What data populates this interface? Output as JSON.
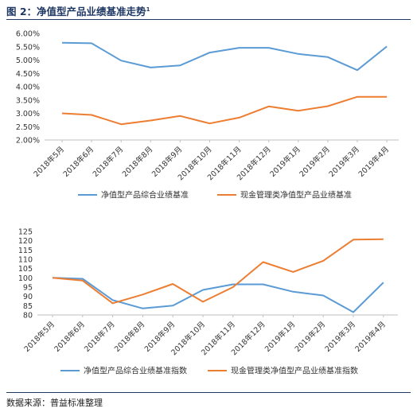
{
  "figure": {
    "title": "图 2：净值型产品业绩基准走势",
    "title_sup": "1",
    "source": "数据来源：普益标准整理"
  },
  "colors": {
    "series1": "#5b9bd5",
    "series2": "#ed7d31",
    "axis": "#bfbfbf",
    "title": "#1f3864"
  },
  "chart_data": [
    {
      "type": "line",
      "title": "",
      "xlabel": "",
      "ylabel": "",
      "categories": [
        "2018年5月",
        "2018年6月",
        "2018年7月",
        "2018年8月",
        "2018年9月",
        "2018年10月",
        "2018年11月",
        "2018年12月",
        "2019年1月",
        "2019年2月",
        "2019年3月",
        "2019年4月"
      ],
      "ylim": [
        0.02,
        0.06
      ],
      "yticks": [
        "2.00%",
        "2.50%",
        "3.00%",
        "3.50%",
        "4.00%",
        "4.50%",
        "5.00%",
        "5.50%",
        "6.00%"
      ],
      "grid": false,
      "legend": "bottom",
      "series": [
        {
          "name": "净值型产品综合业绩基准",
          "values": [
            0.0565,
            0.0563,
            0.0498,
            0.0472,
            0.048,
            0.0528,
            0.0546,
            0.0546,
            0.0523,
            0.0511,
            0.0462,
            0.0551
          ]
        },
        {
          "name": "现金管理类净值型产品业绩基准",
          "values": [
            0.03,
            0.0294,
            0.0259,
            0.0273,
            0.029,
            0.0262,
            0.0284,
            0.0326,
            0.031,
            0.0327,
            0.0362,
            0.0362
          ]
        }
      ]
    },
    {
      "type": "line",
      "title": "",
      "xlabel": "",
      "ylabel": "",
      "categories": [
        "2018年5月",
        "2018年6月",
        "2018年7月",
        "2018年8月",
        "2018年9月",
        "2018年10月",
        "2018年11月",
        "2018年12月",
        "2019年1月",
        "2019年2月",
        "2019年3月",
        "2019年4月"
      ],
      "ylim": [
        80,
        125
      ],
      "yticks": [
        "80",
        "85",
        "90",
        "95",
        "100",
        "105",
        "110",
        "115",
        "120",
        "125"
      ],
      "grid": false,
      "legend": "bottom",
      "series": [
        {
          "name": "净值型产品综合业绩基准指数",
          "values": [
            100,
            99.5,
            88,
            83.5,
            85,
            93.5,
            96.5,
            96.5,
            92.5,
            90.5,
            81.5,
            97.5
          ]
        },
        {
          "name": "现金管理类净值型产品业绩基准指数",
          "values": [
            100,
            98.5,
            86.3,
            91,
            96.7,
            87.1,
            95,
            108.5,
            103.2,
            109.2,
            120.6,
            120.8
          ]
        }
      ]
    }
  ]
}
